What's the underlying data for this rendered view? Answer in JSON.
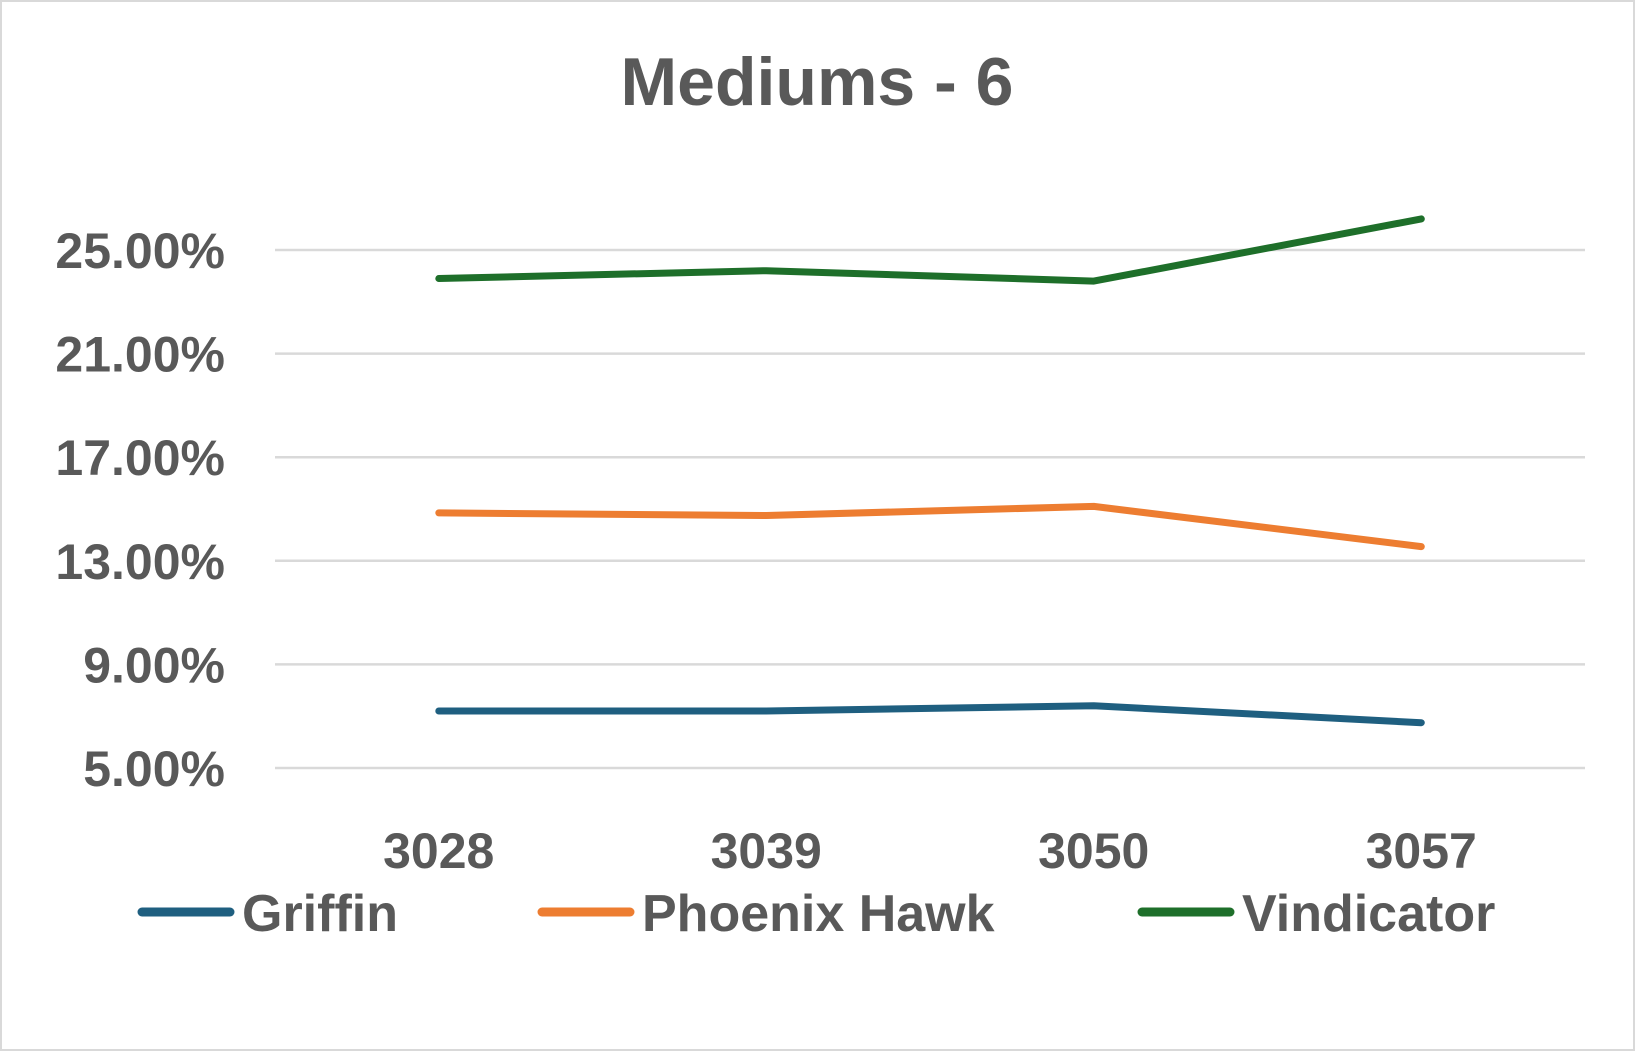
{
  "chart_data": {
    "type": "line",
    "title": "Mediums - 6",
    "xlabel": "",
    "ylabel": "",
    "categories": [
      "3028",
      "3039",
      "3050",
      "3057"
    ],
    "ytick_labels": [
      "5.00%",
      "9.00%",
      "13.00%",
      "17.00%",
      "21.00%",
      "25.00%"
    ],
    "ytick_values": [
      5,
      9,
      13,
      17,
      21,
      25
    ],
    "ylim": [
      5,
      25
    ],
    "grid": true,
    "legend_position": "bottom",
    "series": [
      {
        "name": "Griffin",
        "color": "#1f5f80",
        "values": [
          7.2,
          7.2,
          7.4,
          6.75
        ]
      },
      {
        "name": "Phoenix Hawk",
        "color": "#ed7d31",
        "values": [
          14.85,
          14.75,
          15.1,
          13.55
        ]
      },
      {
        "name": "Vindicator",
        "color": "#1e6f2a",
        "values": [
          23.9,
          24.2,
          23.8,
          26.2
        ]
      }
    ]
  }
}
